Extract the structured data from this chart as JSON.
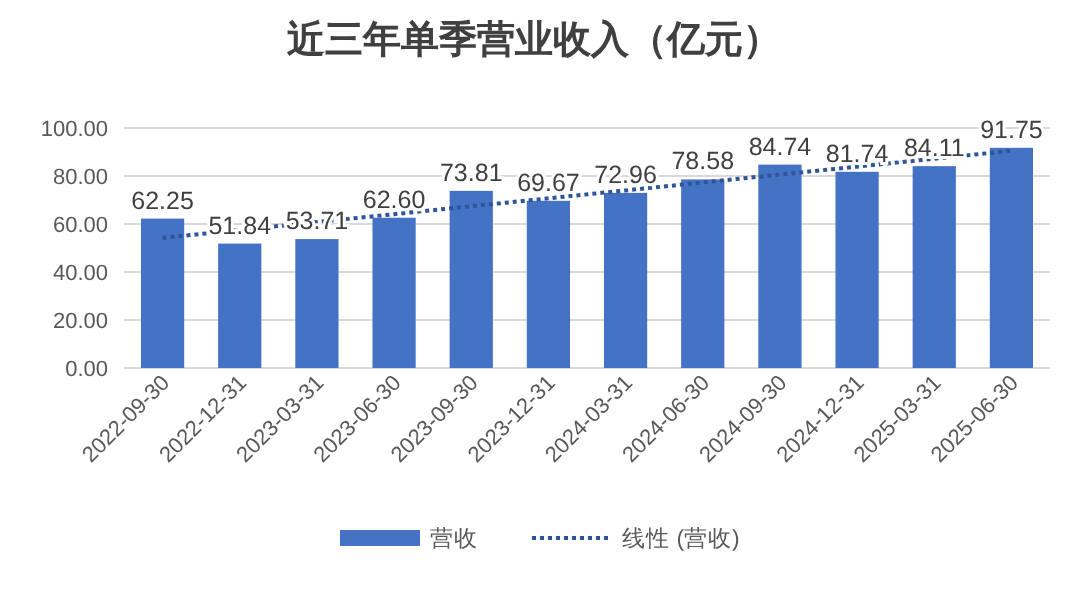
{
  "chart_data": {
    "type": "bar",
    "title": "近三年单季营业收入（亿元）",
    "categories": [
      "2022-09-30",
      "2022-12-31",
      "2023-03-31",
      "2023-06-30",
      "2023-09-30",
      "2023-12-31",
      "2024-03-31",
      "2024-06-30",
      "2024-09-30",
      "2024-12-31",
      "2025-03-31",
      "2025-06-30"
    ],
    "series": [
      {
        "name": "营收",
        "color": "#4472c4",
        "values": [
          62.25,
          51.84,
          53.71,
          62.6,
          73.81,
          69.67,
          72.96,
          78.58,
          84.74,
          81.74,
          84.11,
          91.75
        ],
        "value_labels": [
          "62.25",
          "51.84",
          "53.71",
          "62.60",
          "73.81",
          "69.67",
          "72.96",
          "78.58",
          "84.74",
          "81.74",
          "84.11",
          "91.75"
        ]
      },
      {
        "name": "线性 (营收)",
        "type": "line",
        "line_style": "dotted",
        "color": "#2f5597",
        "values": [
          54.2,
          57.5,
          60.8,
          64.1,
          67.4,
          70.7,
          74.0,
          77.3,
          80.6,
          83.9,
          87.2,
          90.5
        ]
      }
    ],
    "ylim": [
      0,
      100
    ],
    "yticks": [
      {
        "value": 0,
        "label": "0.00"
      },
      {
        "value": 20,
        "label": "20.00"
      },
      {
        "value": 40,
        "label": "40.00"
      },
      {
        "value": 60,
        "label": "60.00"
      },
      {
        "value": 80,
        "label": "80.00"
      },
      {
        "value": 100,
        "label": "100.00"
      }
    ],
    "grid": "y",
    "legend": "bottom"
  }
}
